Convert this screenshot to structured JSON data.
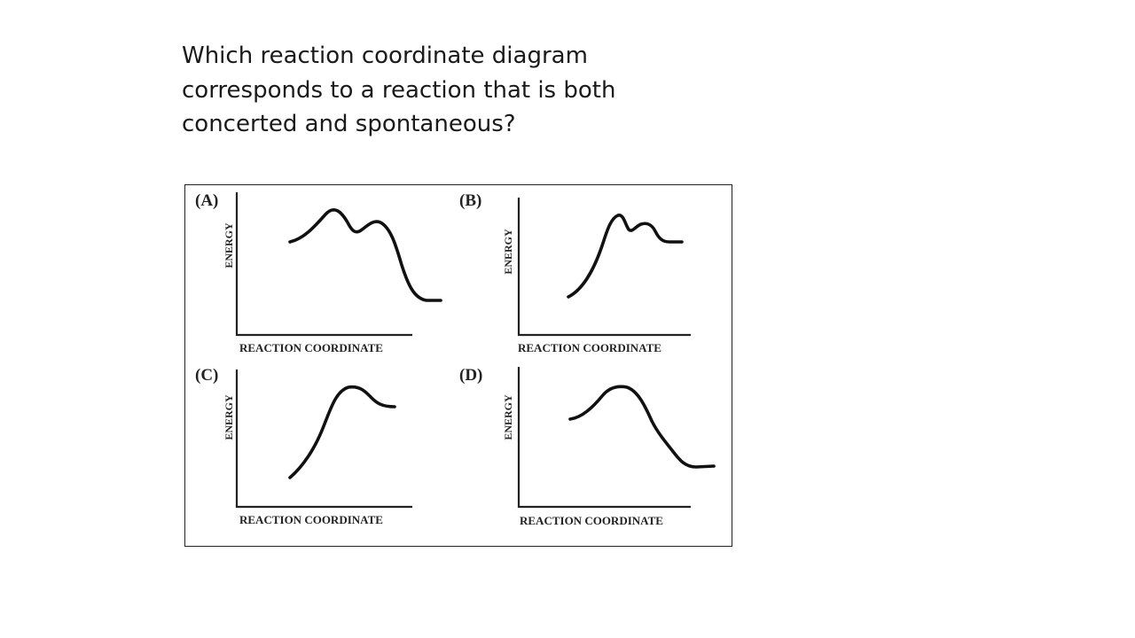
{
  "question": {
    "lines": [
      "Which reaction coordinate diagram",
      "corresponds to a reaction that is both",
      "concerted and spontaneous?"
    ]
  },
  "figure": {
    "panels": [
      {
        "letter": "(A)",
        "ylabel": "ENERGY",
        "xlabel": "REACTION COORDINATE"
      },
      {
        "letter": "(B)",
        "ylabel": "ENERGY",
        "xlabel": "REACTION COORDINATE"
      },
      {
        "letter": "(C)",
        "ylabel": "ENERGY",
        "xlabel": "REACTION COORDINATE"
      },
      {
        "letter": "(D)",
        "ylabel": "ENERGY",
        "xlabel": "REACTION COORDINATE"
      }
    ]
  }
}
